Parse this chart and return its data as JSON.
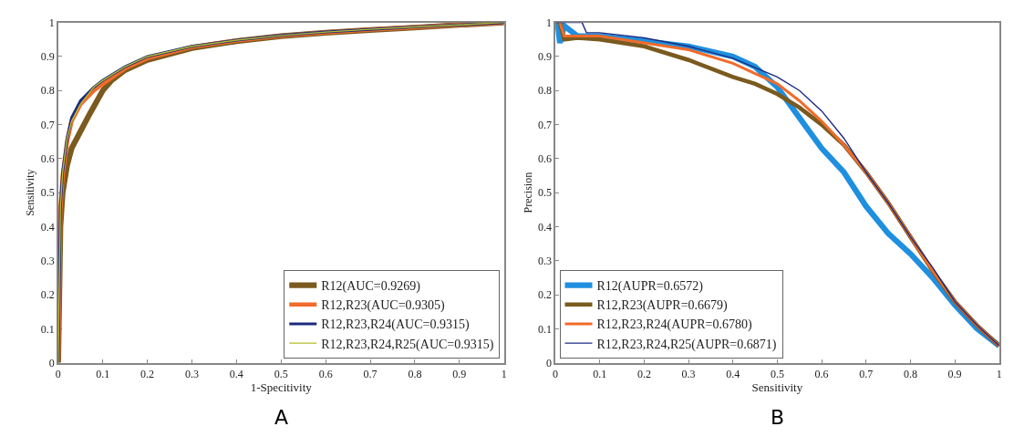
{
  "chart_data": [
    {
      "type": "line",
      "xlabel": "1-Specitivity",
      "ylabel": "Sensitivity",
      "annotations": [
        "A"
      ],
      "xlim": [
        0,
        1
      ],
      "ylim": [
        0,
        1
      ],
      "xticks": [
        0,
        0.1,
        0.2,
        0.3,
        0.4,
        0.5,
        0.6,
        0.7,
        0.8,
        0.9,
        1
      ],
      "yticks": [
        0,
        0.1,
        0.2,
        0.3,
        0.4,
        0.5,
        0.6,
        0.7,
        0.8,
        0.9,
        1
      ],
      "grid": false,
      "legend": "bottom right",
      "marker": "none",
      "line_style": "solid",
      "series": [
        {
          "name": "R12(AUC=0.9269)",
          "color": "#7a5a1e",
          "x": [
            0,
            0.005,
            0.01,
            0.02,
            0.03,
            0.05,
            0.07,
            0.1,
            0.12,
            0.15,
            0.2,
            0.3,
            0.4,
            0.5,
            0.6,
            0.7,
            0.8,
            0.9,
            1
          ],
          "values": [
            0,
            0.4,
            0.5,
            0.58,
            0.63,
            0.68,
            0.73,
            0.8,
            0.83,
            0.86,
            0.89,
            0.925,
            0.945,
            0.96,
            0.97,
            0.978,
            0.985,
            0.993,
            1
          ]
        },
        {
          "name": "R12,R23(AUC=0.9305)",
          "color": "#f26b2a",
          "x": [
            0,
            0.005,
            0.01,
            0.02,
            0.03,
            0.05,
            0.08,
            0.1,
            0.15,
            0.2,
            0.3,
            0.4,
            0.5,
            0.6,
            0.7,
            0.8,
            0.9,
            1
          ],
          "values": [
            0,
            0.45,
            0.55,
            0.65,
            0.71,
            0.76,
            0.8,
            0.82,
            0.865,
            0.895,
            0.928,
            0.947,
            0.961,
            0.971,
            0.979,
            0.986,
            0.993,
            1
          ]
        },
        {
          "name": "R12,R23,R24(AUC=0.9315)",
          "color": "#1c2a80",
          "x": [
            0,
            0.005,
            0.01,
            0.02,
            0.03,
            0.05,
            0.08,
            0.1,
            0.15,
            0.2,
            0.3,
            0.4,
            0.5,
            0.6,
            0.7,
            0.8,
            0.9,
            1
          ],
          "values": [
            0,
            0.46,
            0.56,
            0.66,
            0.72,
            0.77,
            0.81,
            0.83,
            0.87,
            0.9,
            0.93,
            0.948,
            0.962,
            0.972,
            0.98,
            0.987,
            0.993,
            1
          ]
        },
        {
          "name": "R12,R23,R24,R25(AUC=0.9315)",
          "color": "#b5bd2a",
          "x": [
            0,
            0.005,
            0.01,
            0.02,
            0.03,
            0.05,
            0.08,
            0.1,
            0.15,
            0.2,
            0.3,
            0.4,
            0.5,
            0.6,
            0.7,
            0.8,
            0.9,
            1
          ],
          "values": [
            0,
            0.46,
            0.56,
            0.66,
            0.71,
            0.76,
            0.81,
            0.83,
            0.87,
            0.9,
            0.93,
            0.948,
            0.962,
            0.972,
            0.98,
            0.987,
            0.993,
            1
          ]
        }
      ]
    },
    {
      "type": "line",
      "xlabel": "Sensitivity",
      "ylabel": "Precision",
      "annotations": [
        "B"
      ],
      "xlim": [
        0,
        1
      ],
      "ylim": [
        0,
        1
      ],
      "xticks": [
        0,
        0.1,
        0.2,
        0.3,
        0.4,
        0.5,
        0.6,
        0.7,
        0.8,
        0.9,
        1
      ],
      "yticks": [
        0,
        0.1,
        0.2,
        0.3,
        0.4,
        0.5,
        0.6,
        0.7,
        0.8,
        0.9,
        1
      ],
      "grid": false,
      "legend": "bottom left",
      "marker": "none",
      "line_style": "solid",
      "series": [
        {
          "name": "R12(AUPR=0.6572)",
          "color": "#1f8fdf",
          "x": [
            0.005,
            0.01,
            0.02,
            0.05,
            0.1,
            0.2,
            0.3,
            0.4,
            0.45,
            0.5,
            0.55,
            0.6,
            0.65,
            0.7,
            0.75,
            0.8,
            0.85,
            0.9,
            0.95,
            1
          ],
          "values": [
            1,
            0.94,
            0.99,
            0.96,
            0.96,
            0.945,
            0.93,
            0.9,
            0.87,
            0.81,
            0.72,
            0.63,
            0.56,
            0.46,
            0.38,
            0.32,
            0.25,
            0.17,
            0.1,
            0.05
          ]
        },
        {
          "name": "R12,R23(AUPR=0.6679)",
          "color": "#7a5a1e",
          "x": [
            0.01,
            0.02,
            0.05,
            0.1,
            0.2,
            0.3,
            0.4,
            0.45,
            0.5,
            0.55,
            0.6,
            0.65,
            0.7,
            0.75,
            0.8,
            0.85,
            0.9,
            0.95,
            1
          ],
          "values": [
            1,
            0.95,
            0.955,
            0.95,
            0.93,
            0.89,
            0.84,
            0.82,
            0.79,
            0.75,
            0.7,
            0.64,
            0.56,
            0.47,
            0.37,
            0.27,
            0.18,
            0.11,
            0.05
          ]
        },
        {
          "name": "R12,R23,R24(AUPR=0.6780)",
          "color": "#f26b2a",
          "x": [
            0.01,
            0.02,
            0.05,
            0.1,
            0.2,
            0.3,
            0.4,
            0.5,
            0.55,
            0.6,
            0.65,
            0.7,
            0.75,
            0.8,
            0.85,
            0.9,
            0.95,
            1
          ],
          "values": [
            1,
            0.96,
            0.96,
            0.96,
            0.94,
            0.92,
            0.88,
            0.82,
            0.77,
            0.71,
            0.64,
            0.56,
            0.47,
            0.37,
            0.27,
            0.18,
            0.11,
            0.05
          ]
        },
        {
          "name": "R12,R23,R24,R25(AUPR=0.6871)",
          "color": "#1c2a80",
          "x": [
            0,
            0.06,
            0.07,
            0.1,
            0.2,
            0.3,
            0.4,
            0.5,
            0.55,
            0.6,
            0.65,
            0.7,
            0.75,
            0.8,
            0.85,
            0.9,
            0.95,
            1
          ],
          "values": [
            1,
            1,
            0.97,
            0.97,
            0.955,
            0.93,
            0.895,
            0.84,
            0.8,
            0.74,
            0.66,
            0.56,
            0.47,
            0.37,
            0.28,
            0.18,
            0.11,
            0.05
          ]
        }
      ]
    }
  ]
}
